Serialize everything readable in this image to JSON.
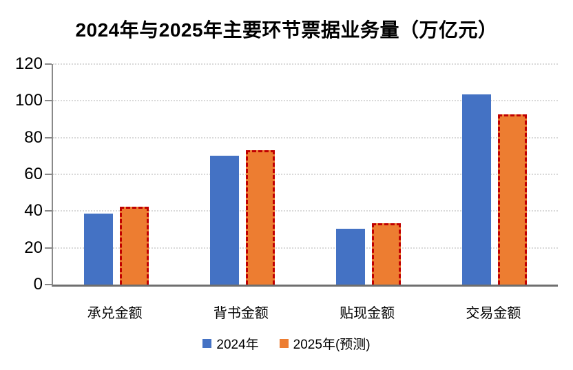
{
  "chart_data": {
    "type": "bar",
    "title": "2024年与2025年主要环节票据业务量（万亿元）",
    "categories": [
      "承兑金额",
      "背书金额",
      "贴现金额",
      "交易金额"
    ],
    "series": [
      {
        "name": "2024年",
        "values": [
          38.5,
          70,
          30.5,
          103.5
        ],
        "color": "#4472C4",
        "border": "none"
      },
      {
        "name": "2025年(预测)",
        "values": [
          42.5,
          73,
          33.5,
          92.5
        ],
        "color": "#ED7D31",
        "border": "dashed",
        "border_color": "#C00000"
      }
    ],
    "xlabel": "",
    "ylabel": "",
    "ylim": [
      0,
      120
    ],
    "ytick_interval": 20,
    "ytick_labels": [
      "0",
      "20",
      "40",
      "60",
      "80",
      "100",
      "120"
    ],
    "grid": true,
    "gridline_color": "#d9d9d9",
    "axis_color": "#898989",
    "legend_position": "bottom"
  }
}
